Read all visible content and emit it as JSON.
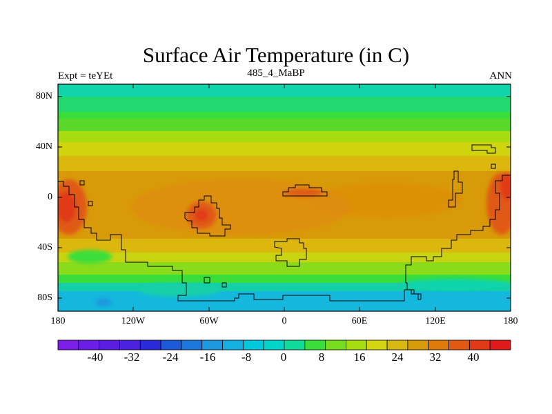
{
  "title": "Surface Air Temperature (in C)",
  "experiment_label": "Expt = teYEt",
  "run_label": "485_4_MaBP",
  "season_label": "ANN",
  "map": {
    "projection": "cylindrical-equidistant",
    "lat_ticks": [
      "80N",
      "40N",
      "0",
      "40S",
      "80S"
    ],
    "lon_ticks": [
      "180",
      "120W",
      "60W",
      "0",
      "60E",
      "120E",
      "180"
    ]
  },
  "colorbar": {
    "colors": [
      "#7a1ee8",
      "#6b1ee6",
      "#5a1ee3",
      "#4a22e0",
      "#2a2ad8",
      "#1e5ad8",
      "#1e78dc",
      "#1e98e0",
      "#14b0e0",
      "#00c8dc",
      "#00d4c8",
      "#10dc9a",
      "#3ade3a",
      "#78dc1e",
      "#a8dc10",
      "#d4d410",
      "#d8b810",
      "#d89a08",
      "#e07a0a",
      "#e05a12",
      "#e03a18",
      "#e01a1a"
    ],
    "tick_labels": [
      "-40",
      "-32",
      "-24",
      "-16",
      "-8",
      "0",
      "8",
      "16",
      "24",
      "32",
      "40"
    ]
  }
}
